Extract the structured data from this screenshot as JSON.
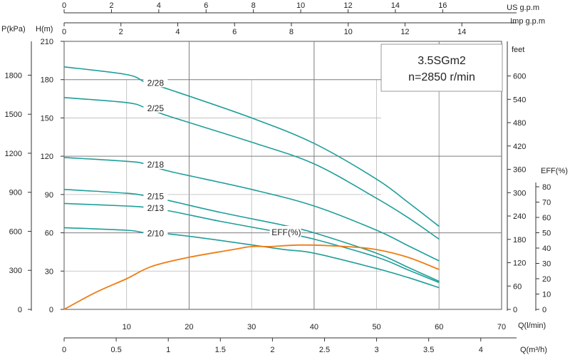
{
  "chart_data": {
    "type": "line",
    "title": "3.5SGm2",
    "subtitle": "n=2850 r/min",
    "colors": {
      "head": "#1f9e9a",
      "efficiency": "#ee7d14",
      "grid": "#7d7d7d"
    },
    "axes": {
      "q_lmin": {
        "label": "Q(l/min)",
        "range": [
          0,
          70
        ],
        "ticks": [
          "10",
          "20",
          "30",
          "40",
          "50",
          "60",
          "70"
        ]
      },
      "q_m3h": {
        "label": "Q(m³/h)",
        "range": [
          0,
          4.2
        ],
        "ticks": [
          "0",
          "0.5",
          "1",
          "1.5",
          "2",
          "2.5",
          "3",
          "3.5",
          "4"
        ]
      },
      "us_gpm": {
        "label": "US  g.p.m",
        "range": [
          0,
          18.49
        ],
        "ticks": [
          "0",
          "2",
          "4",
          "6",
          "8",
          "10",
          "12",
          "14",
          "16"
        ]
      },
      "imp_gpm": {
        "label": "Imp  g.p.m",
        "range": [
          0,
          15.4
        ],
        "ticks": [
          "0",
          "2",
          "4",
          "6",
          "8",
          "10",
          "12",
          "14"
        ]
      },
      "head_m": {
        "label": "H(m)",
        "range": [
          0,
          210
        ],
        "ticks": [
          "0",
          "30",
          "60",
          "90",
          "120",
          "150",
          "180",
          "210"
        ]
      },
      "pressure_kpa": {
        "label": "P(kPa)",
        "range": [
          0,
          2060
        ],
        "ticks": [
          "0",
          "300",
          "600",
          "900",
          "1200",
          "1500",
          "1800"
        ]
      },
      "head_ft": {
        "label": "feet",
        "range": [
          0,
          689
        ],
        "ticks": [
          "0",
          "60",
          "120",
          "180",
          "240",
          "300",
          "360",
          "420",
          "480",
          "540",
          "600"
        ]
      },
      "eff_pct": {
        "label": "EFF(%)",
        "range": [
          0,
          80
        ],
        "ticks": [
          "0",
          "10",
          "20",
          "30",
          "40",
          "50",
          "60",
          "70",
          "80"
        ]
      }
    },
    "series": [
      {
        "name": "2/28",
        "x": [
          0,
          10,
          13,
          17,
          30,
          40,
          50,
          55,
          60
        ],
        "y": [
          190,
          184,
          178,
          172,
          150,
          130,
          102,
          84,
          65
        ]
      },
      {
        "name": "2/25",
        "x": [
          0,
          10,
          13,
          17,
          30,
          40,
          50,
          55,
          60
        ],
        "y": [
          166,
          162,
          158,
          151,
          131,
          114,
          87,
          72,
          55
        ]
      },
      {
        "name": "2/18",
        "x": [
          0,
          10,
          13,
          17,
          30,
          40,
          50,
          55,
          60
        ],
        "y": [
          119,
          116,
          114,
          108,
          94,
          81,
          62,
          50,
          38
        ]
      },
      {
        "name": "2/15",
        "x": [
          0,
          10,
          13,
          17,
          25,
          35,
          40,
          50,
          55,
          60
        ],
        "y": [
          94,
          91,
          89,
          85,
          76,
          66,
          60,
          44,
          33,
          22
        ]
      },
      {
        "name": "2/13",
        "x": [
          0,
          10,
          13,
          17,
          25,
          35,
          40,
          50,
          55,
          60
        ],
        "y": [
          83,
          81,
          80,
          77,
          69,
          60,
          55,
          41,
          31,
          21
        ]
      },
      {
        "name": "2/10",
        "x": [
          0,
          10,
          13,
          17,
          25,
          35,
          40,
          50,
          55,
          60
        ],
        "y": [
          64,
          62,
          60,
          59,
          54,
          47,
          44,
          32,
          25,
          17
        ]
      }
    ],
    "efficiency": {
      "name": "EFF(%)",
      "x": [
        0,
        5,
        10,
        14,
        20,
        27,
        30,
        33,
        38,
        45,
        50,
        55,
        60
      ],
      "y": [
        0,
        11,
        20,
        28,
        34,
        39,
        41,
        41,
        42,
        41,
        39,
        34,
        26
      ]
    }
  }
}
